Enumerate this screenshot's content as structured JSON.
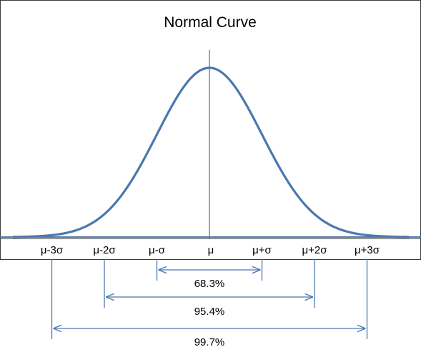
{
  "title": "Normal Curve",
  "colors": {
    "curve": "#4a78b0",
    "lines": "#4a78b0",
    "frame": "#3c3c3c",
    "text": "#000000",
    "background": "#ffffff"
  },
  "axis": {
    "tick_labels": [
      "μ-3σ",
      "μ-2σ",
      "μ-σ",
      "μ",
      "μ+σ",
      "μ+2σ",
      "μ+3σ"
    ]
  },
  "ranges": [
    {
      "from_sigma": -1,
      "to_sigma": 1,
      "label": "68.3%"
    },
    {
      "from_sigma": -2,
      "to_sigma": 2,
      "label": "95.4%"
    },
    {
      "from_sigma": -3,
      "to_sigma": 3,
      "label": "99.7%"
    }
  ]
}
